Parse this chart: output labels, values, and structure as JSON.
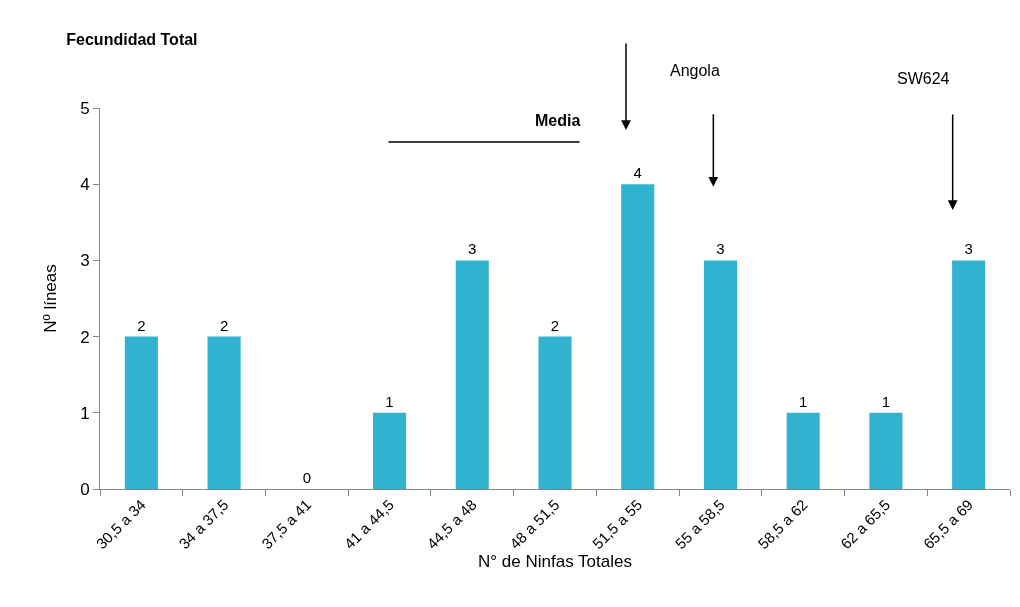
{
  "chart_data": {
    "type": "bar",
    "title": "Fecundidad Total",
    "xlabel": "N° de Ninfas Totales",
    "ylabel": "Nº líneas",
    "categories": [
      "30,5 a 34",
      "34 a 37,5",
      "37,5 a 41",
      "41 a 44,5",
      "44,5 a 48",
      "48 a 51,5",
      "51,5 a 55",
      "55 a 58,5",
      "58,5 a 62",
      "62 a 65,5",
      "65,5 a 69"
    ],
    "values": [
      2,
      2,
      0,
      1,
      3,
      2,
      4,
      3,
      1,
      1,
      3
    ],
    "color": "#31b3cf",
    "ylim": [
      0,
      5
    ],
    "yticks": [
      0,
      1,
      2,
      3,
      4,
      5
    ],
    "grid": false,
    "data_labels": true,
    "annotations": [
      "Media",
      "Angola",
      "SW624"
    ]
  }
}
